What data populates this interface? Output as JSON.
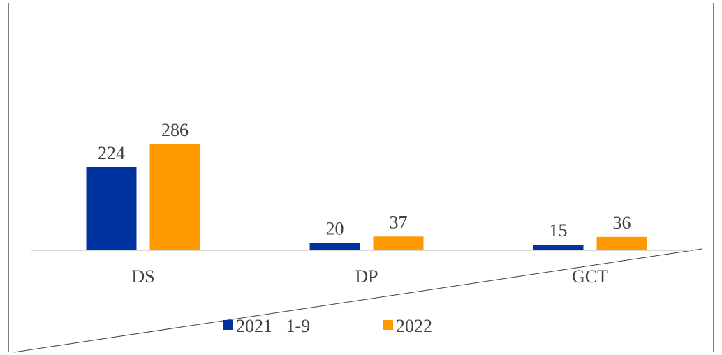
{
  "chart_data": {
    "type": "bar",
    "categories": [
      "DS",
      "DP",
      "GCT"
    ],
    "series": [
      {
        "name": "2021   1-9",
        "color": "#0033a0",
        "values": [
          224,
          20,
          15
        ]
      },
      {
        "name": "2022",
        "color": "#ff9900",
        "values": [
          286,
          37,
          36
        ]
      }
    ],
    "legend": "bottom"
  }
}
